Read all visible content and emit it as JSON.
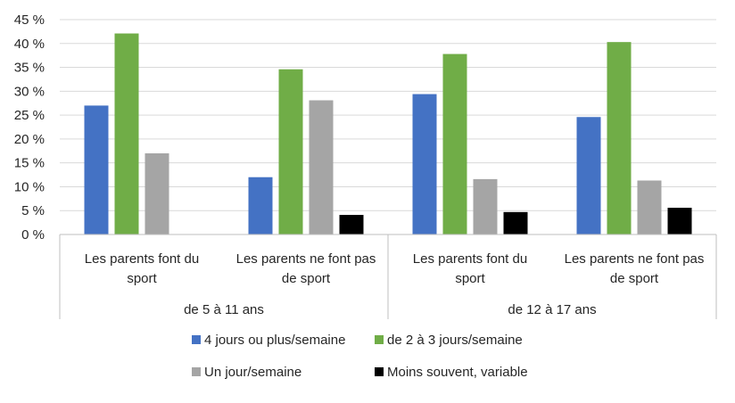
{
  "chart_data": {
    "type": "bar",
    "title": "",
    "xlabel": "",
    "ylabel": "",
    "ylim": [
      0,
      45
    ],
    "y_ticks": [
      "0 %",
      "5 %",
      "10 %",
      "15 %",
      "20 %",
      "25 %",
      "30 %",
      "35 %",
      "40 %",
      "45 %"
    ],
    "grid": true,
    "legend_position": "bottom",
    "groups": [
      {
        "label": "de 5 à 11 ans",
        "categories": [
          {
            "lines": [
              "Les parents font du",
              "sport"
            ]
          },
          {
            "lines": [
              "Les parents ne font pas",
              "de sport"
            ]
          }
        ]
      },
      {
        "label": "de 12 à 17 ans",
        "categories": [
          {
            "lines": [
              "Les parents font du",
              "sport"
            ]
          },
          {
            "lines": [
              "Les parents ne font pas",
              "de sport"
            ]
          }
        ]
      }
    ],
    "series": [
      {
        "name": "4 jours ou plus/semaine",
        "color": "#4472c4",
        "values": [
          27.0,
          12.0,
          29.4,
          24.6
        ]
      },
      {
        "name": "de 2 à 3 jours/semaine",
        "color": "#70ad47",
        "values": [
          42.1,
          34.6,
          37.8,
          40.3
        ]
      },
      {
        "name": "Un jour/semaine",
        "color": "#a5a5a5",
        "values": [
          17.0,
          28.1,
          11.6,
          11.3
        ]
      },
      {
        "name": "Moins souvent, variable",
        "color": "#000000",
        "values": [
          0,
          4.1,
          4.7,
          5.6
        ]
      }
    ]
  }
}
